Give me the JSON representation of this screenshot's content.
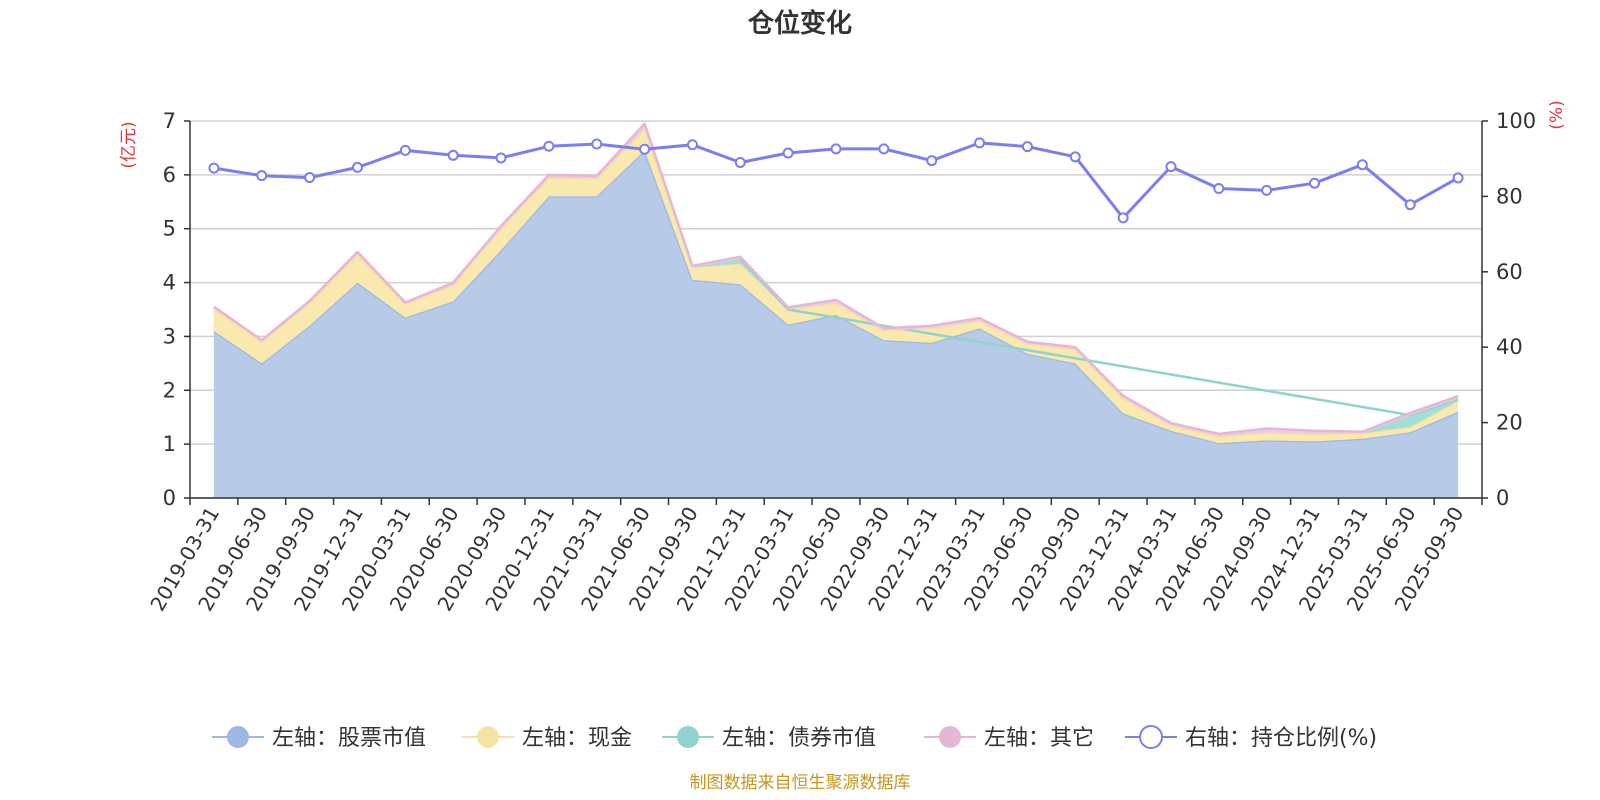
{
  "chart_data": {
    "type": "area",
    "title": "仓位变化",
    "left_axis": {
      "unit": "(亿元)",
      "ylim": [
        0,
        7
      ],
      "ticks": [
        "0",
        "1",
        "2",
        "3",
        "4",
        "5",
        "6",
        "7"
      ]
    },
    "right_axis": {
      "unit": "(%)",
      "ylim": [
        0,
        100
      ],
      "ticks": [
        "0",
        "20",
        "40",
        "60",
        "80",
        "100"
      ]
    },
    "categories": [
      "2019-03-31",
      "2019-06-30",
      "2019-09-30",
      "2019-12-31",
      "2020-03-31",
      "2020-06-30",
      "2020-09-30",
      "2020-12-31",
      "2021-03-31",
      "2021-06-30",
      "2021-09-30",
      "2021-12-31",
      "2022-03-31",
      "2022-06-30",
      "2022-09-30",
      "2022-12-31",
      "2023-03-31",
      "2023-06-30",
      "2023-09-30",
      "2023-12-31",
      "2024-03-31",
      "2024-06-30",
      "2024-09-30",
      "2024-12-31",
      "2025-03-31",
      "2025-06-30",
      "2025-09-30"
    ],
    "series": [
      {
        "name": "左轴：股票市值",
        "axis": "left",
        "kind": "stacked-area",
        "color": "#9db8e2",
        "fill": "#b7cbe9",
        "values": [
          3.1,
          2.5,
          3.2,
          4.0,
          3.35,
          3.65,
          4.6,
          5.6,
          5.6,
          6.45,
          4.05,
          3.97,
          3.22,
          3.4,
          2.93,
          2.88,
          3.15,
          2.68,
          2.5,
          1.57,
          1.25,
          1.02,
          1.07,
          1.05,
          1.1,
          1.22,
          1.6
        ]
      },
      {
        "name": "左轴：现金",
        "axis": "left",
        "kind": "stacked-area",
        "color": "#f7e3a1",
        "fill": "#f9e9ae",
        "values": [
          0.42,
          0.4,
          0.42,
          0.52,
          0.25,
          0.3,
          0.4,
          0.35,
          0.33,
          0.4,
          0.23,
          0.38,
          0.28,
          0.22,
          0.18,
          0.27,
          0.14,
          0.18,
          0.26,
          0.28,
          0.1,
          0.12,
          0.14,
          0.13,
          0.1,
          0.1,
          0.2
        ]
      },
      {
        "name": "左轴：债券市值",
        "axis": "left",
        "kind": "stacked-area",
        "color": "#8fd3cc",
        "fill": "#a6dcd6",
        "values": [
          0,
          0,
          0,
          0,
          0,
          0,
          0,
          0,
          0,
          0,
          0,
          0.1,
          0,
          0,
          0,
          0,
          0,
          0,
          0,
          0,
          0,
          0,
          0,
          0,
          0,
          0.22,
          0.04
        ]
      },
      {
        "name": "左轴：其它",
        "axis": "left",
        "kind": "stacked-area",
        "color": "#e6b6d6",
        "fill": "#efcbe3",
        "values": [
          0.03,
          0.03,
          0.04,
          0.05,
          0.03,
          0.05,
          0.05,
          0.05,
          0.05,
          0.1,
          0.03,
          0.03,
          0.04,
          0.06,
          0.04,
          0.05,
          0.05,
          0.04,
          0.04,
          0.05,
          0.04,
          0.05,
          0.08,
          0.07,
          0.03,
          0.04,
          0.05
        ]
      },
      {
        "name": "右轴：持仓比例(%)",
        "axis": "right",
        "kind": "line",
        "color": "#7b7ef0",
        "values": [
          87.5,
          85.5,
          85.0,
          87.7,
          92.2,
          90.9,
          90.2,
          93.3,
          93.9,
          92.5,
          93.7,
          89.0,
          91.5,
          92.6,
          92.6,
          89.5,
          94.2,
          93.2,
          90.5,
          74.3,
          87.9,
          82.1,
          81.6,
          83.5,
          88.4,
          77.8,
          84.9
        ]
      }
    ],
    "legend_position": "bottom-center",
    "grid": true
  },
  "footer": {
    "source": "制图数据来自恒生聚源数据库"
  }
}
